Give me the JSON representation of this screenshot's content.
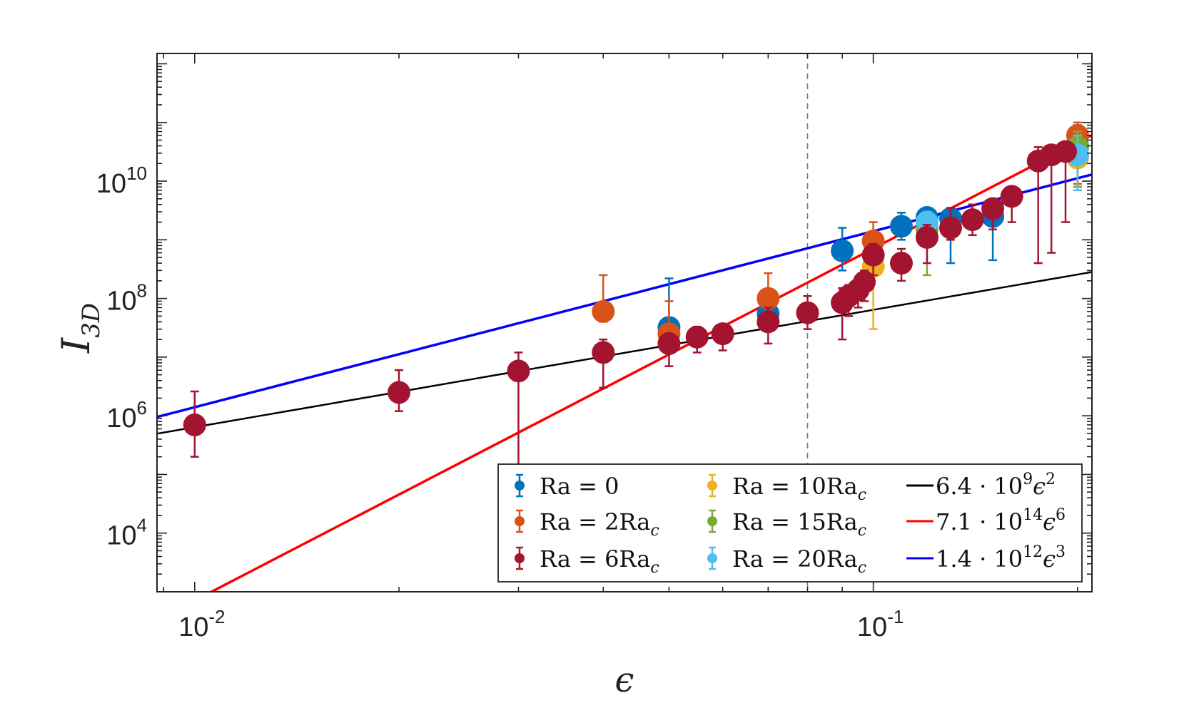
{
  "chart_data": {
    "type": "scatter",
    "xlabel": "ϵ",
    "ylabel": "I_{3D}",
    "xscale": "log",
    "yscale": "log",
    "xlim": [
      0.0088,
      0.21
    ],
    "ylim": [
      1000,
      1500000000000
    ],
    "xticks": [
      {
        "value": 0.01,
        "base": "10",
        "exp": "-2"
      },
      {
        "value": 0.1,
        "base": "10",
        "exp": "-1"
      }
    ],
    "yticks": [
      {
        "value": 10000,
        "base": "10",
        "exp": "4"
      },
      {
        "value": 1000000,
        "base": "10",
        "exp": "6"
      },
      {
        "value": 100000000,
        "base": "10",
        "exp": "8"
      },
      {
        "value": 10000000000,
        "base": "10",
        "exp": "10"
      }
    ],
    "reference_line_x": 0.08,
    "grid": false,
    "legend_position": "bottom-right",
    "series": [
      {
        "name": "Ra = 0",
        "label_base": "Ra = 0",
        "label_sub": "",
        "color": "#0072BD",
        "points": [
          {
            "x": 0.05,
            "y": 32000000,
            "lo": 15000000,
            "hi": 220000000
          },
          {
            "x": 0.07,
            "y": 55000000,
            "lo": 30000000,
            "hi": 90000000
          },
          {
            "x": 0.09,
            "y": 650000000,
            "lo": 300000000,
            "hi": 1600000000
          },
          {
            "x": 0.11,
            "y": 1700000000,
            "lo": 1000000000,
            "hi": 2900000000
          },
          {
            "x": 0.12,
            "y": 2400000000,
            "lo": 1400000000,
            "hi": 3000000000
          },
          {
            "x": 0.13,
            "y": 2300000000,
            "lo": 400000000,
            "hi": 3500000000
          },
          {
            "x": 0.15,
            "y": 2500000000,
            "lo": 450000000,
            "hi": 3400000000
          },
          {
            "x": 0.2,
            "y": 40000000000,
            "lo": 8000000000,
            "hi": 90000000000
          }
        ]
      },
      {
        "name": "Ra = 2Ra_c",
        "label_base": "Ra = 2Ra",
        "label_sub": "c",
        "color": "#D95319",
        "points": [
          {
            "x": 0.04,
            "y": 60000000,
            "lo": 40000000,
            "hi": 250000000
          },
          {
            "x": 0.05,
            "y": 25000000,
            "lo": 15000000,
            "hi": 90000000
          },
          {
            "x": 0.07,
            "y": 100000000,
            "lo": 60000000,
            "hi": 270000000
          },
          {
            "x": 0.1,
            "y": 950000000,
            "lo": 300000000,
            "hi": 2000000000
          },
          {
            "x": 0.2,
            "y": 60000000000,
            "lo": 9000000000,
            "hi": 100000000000
          }
        ]
      },
      {
        "name": "Ra = 6Ra_c",
        "label_base": "Ra = 6Ra",
        "label_sub": "c",
        "color": "#A2142F",
        "points": [
          {
            "x": 0.01,
            "y": 700000,
            "lo": 200000,
            "hi": 2600000
          },
          {
            "x": 0.02,
            "y": 2500000,
            "lo": 1200000,
            "hi": 6000000
          },
          {
            "x": 0.03,
            "y": 5800000,
            "lo": 10000,
            "hi": 12000000
          },
          {
            "x": 0.04,
            "y": 12000000,
            "lo": 3000000,
            "hi": 20000000
          },
          {
            "x": 0.05,
            "y": 17000000,
            "lo": 7000000,
            "hi": 25000000
          },
          {
            "x": 0.055,
            "y": 22000000,
            "lo": 12000000,
            "hi": 33000000
          },
          {
            "x": 0.06,
            "y": 25000000,
            "lo": 13000000,
            "hi": 36000000
          },
          {
            "x": 0.07,
            "y": 40000000,
            "lo": 17000000,
            "hi": 70000000
          },
          {
            "x": 0.08,
            "y": 57000000,
            "lo": 30000000,
            "hi": 110000000
          },
          {
            "x": 0.09,
            "y": 85000000,
            "lo": 20000000,
            "hi": 150000000
          },
          {
            "x": 0.092,
            "y": 110000000,
            "lo": 50000000,
            "hi": 170000000
          },
          {
            "x": 0.095,
            "y": 140000000,
            "lo": 70000000,
            "hi": 220000000
          },
          {
            "x": 0.097,
            "y": 190000000,
            "lo": 90000000,
            "hi": 300000000
          },
          {
            "x": 0.1,
            "y": 550000000,
            "lo": 250000000,
            "hi": 850000000
          },
          {
            "x": 0.11,
            "y": 400000000,
            "lo": 200000000,
            "hi": 700000000
          },
          {
            "x": 0.12,
            "y": 1100000000,
            "lo": 400000000,
            "hi": 1800000000
          },
          {
            "x": 0.13,
            "y": 1600000000,
            "lo": 1000000000,
            "hi": 3500000000
          },
          {
            "x": 0.14,
            "y": 2200000000,
            "lo": 1200000000,
            "hi": 4000000000
          },
          {
            "x": 0.15,
            "y": 3400000000,
            "lo": 1500000000,
            "hi": 5000000000
          },
          {
            "x": 0.16,
            "y": 5500000000,
            "lo": 2000000000,
            "hi": 7000000000
          },
          {
            "x": 0.175,
            "y": 22000000000,
            "lo": 400000000,
            "hi": 38000000000
          },
          {
            "x": 0.183,
            "y": 28000000000,
            "lo": 600000000,
            "hi": 40000000000
          },
          {
            "x": 0.192,
            "y": 32000000000,
            "lo": 2000000000,
            "hi": 45000000000
          }
        ]
      },
      {
        "name": "Ra = 10Ra_c",
        "label_base": "Ra = 10Ra",
        "label_sub": "c",
        "color": "#EDB120",
        "points": [
          {
            "x": 0.1,
            "y": 350000000,
            "lo": 30000000,
            "hi": 550000000
          },
          {
            "x": 0.2,
            "y": 25000000000,
            "lo": 8000000000,
            "hi": 60000000000
          }
        ]
      },
      {
        "name": "Ra = 15Ra_c",
        "label_base": "Ra = 15Ra",
        "label_sub": "c",
        "color": "#77AC30",
        "points": [
          {
            "x": 0.12,
            "y": 1500000000,
            "lo": 250000000,
            "hi": 2500000000
          },
          {
            "x": 0.2,
            "y": 38000000000,
            "lo": 8000000000,
            "hi": 70000000000
          }
        ]
      },
      {
        "name": "Ra = 20Ra_c",
        "label_base": "Ra = 20Ra",
        "label_sub": "c",
        "color": "#4DBEEE",
        "points": [
          {
            "x": 0.12,
            "y": 2000000000,
            "lo": 800000000,
            "hi": 3000000000
          },
          {
            "x": 0.2,
            "y": 28000000000,
            "lo": 7000000000,
            "hi": 60000000000
          }
        ]
      }
    ],
    "fit_lines": [
      {
        "name": "6.4·10^9 ϵ^2",
        "coef_mant": "6.4",
        "coef_exp": "9",
        "power": "2",
        "color": "#000000",
        "a": 6400000000,
        "p": 2,
        "width": 2.5
      },
      {
        "name": "7.1·10^14 ϵ^6",
        "coef_mant": "7.1",
        "coef_exp": "14",
        "power": "6",
        "color": "#FF0000",
        "a": 710000000000000,
        "p": 6,
        "width": 3.5
      },
      {
        "name": "1.4·10^12 ϵ^3",
        "coef_mant": "1.4",
        "coef_exp": "12",
        "power": "3",
        "color": "#0000FF",
        "a": 1400000000000,
        "p": 3,
        "width": 3.5
      }
    ]
  }
}
